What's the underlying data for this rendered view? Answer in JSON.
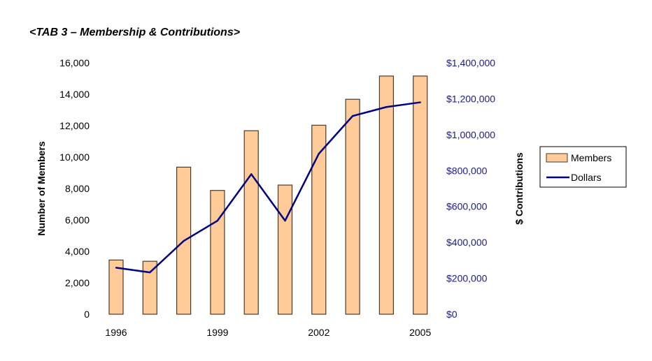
{
  "heading": "<TAB 3 – Membership & Contributions>",
  "chart_data": {
    "type": "bar+line",
    "categories": [
      "1996",
      "1997",
      "1998",
      "1999",
      "2000",
      "2001",
      "2002",
      "2003",
      "2004",
      "2005"
    ],
    "x_tick_labels": [
      "1996",
      "1999",
      "2002",
      "2005"
    ],
    "ylabel": "Number of Members",
    "y2label": "$ Contributions",
    "ylim": [
      0,
      16000
    ],
    "y2lim": [
      0,
      1400000
    ],
    "y_ticks": [
      "0",
      "2,000",
      "4,000",
      "6,000",
      "8,000",
      "10,000",
      "12,000",
      "14,000",
      "16,000"
    ],
    "y2_ticks": [
      "$0",
      "$200,000",
      "$400,000",
      "$600,000",
      "$800,000",
      "$1,000,000",
      "$1,200,000",
      "$1,400,000"
    ],
    "grid": false,
    "legend_position": "right",
    "series": [
      {
        "name": "Members",
        "type": "bar",
        "axis": "left",
        "color": "#FFCC99",
        "values": [
          3450,
          3370,
          9360,
          7880,
          11680,
          8220,
          12030,
          13680,
          15160,
          15160
        ]
      },
      {
        "name": "Dollars",
        "type": "line",
        "axis": "right",
        "color": "#000080",
        "values": [
          259000,
          233000,
          408000,
          521000,
          780000,
          521000,
          894000,
          1104000,
          1154000,
          1180000
        ]
      }
    ]
  }
}
